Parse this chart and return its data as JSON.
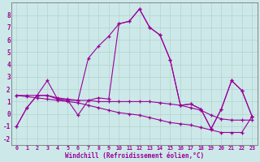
{
  "xlabel": "Windchill (Refroidissement éolien,°C)",
  "bg_color": "#cde8e8",
  "line_color": "#990099",
  "grid_color": "#b0d4cc",
  "xlim": [
    -0.5,
    23.5
  ],
  "ylim": [
    -2.5,
    9.0
  ],
  "xticks": [
    0,
    1,
    2,
    3,
    4,
    5,
    6,
    7,
    8,
    9,
    10,
    11,
    12,
    13,
    14,
    15,
    16,
    17,
    18,
    19,
    20,
    21,
    22,
    23
  ],
  "yticks": [
    -2,
    -1,
    0,
    1,
    2,
    3,
    4,
    5,
    6,
    7,
    8
  ],
  "lineA_x": [
    0,
    1,
    2,
    3,
    4,
    5,
    6,
    7,
    8,
    9,
    10,
    11,
    12,
    13,
    14,
    15,
    16,
    17,
    18,
    19,
    20,
    21,
    22,
    23
  ],
  "lineA_y": [
    -1.0,
    0.5,
    1.5,
    1.5,
    1.2,
    1.1,
    1.1,
    4.5,
    5.5,
    6.3,
    7.3,
    7.5,
    8.5,
    7.0,
    6.4,
    4.4,
    0.7,
    0.8,
    0.4,
    -1.2,
    0.4,
    2.7,
    1.9,
    -0.2
  ],
  "lineB_x": [
    0,
    1,
    2,
    3,
    4,
    5,
    6,
    7,
    8,
    9,
    10,
    11,
    12,
    13,
    14,
    15,
    16,
    17,
    18,
    19,
    20,
    21,
    22,
    23
  ],
  "lineB_y": [
    -1.0,
    0.5,
    1.5,
    2.7,
    1.2,
    1.1,
    -0.1,
    1.1,
    1.3,
    1.2,
    7.3,
    7.5,
    8.5,
    7.0,
    6.4,
    4.4,
    0.7,
    0.8,
    0.4,
    -1.2,
    0.4,
    2.7,
    1.9,
    -0.2
  ],
  "lineC_x": [
    0,
    1,
    2,
    3,
    4,
    5,
    6,
    7,
    8,
    9,
    10,
    11,
    12,
    13,
    14,
    15,
    16,
    17,
    18,
    19,
    20,
    21,
    22,
    23
  ],
  "lineC_y": [
    1.5,
    1.5,
    1.5,
    1.5,
    1.3,
    1.2,
    1.1,
    1.1,
    1.0,
    1.0,
    1.0,
    1.0,
    1.0,
    1.0,
    0.9,
    0.8,
    0.7,
    0.5,
    0.3,
    -0.1,
    -0.4,
    -0.5,
    -0.5,
    -0.5
  ],
  "lineD_x": [
    0,
    1,
    2,
    3,
    4,
    5,
    6,
    7,
    8,
    9,
    10,
    11,
    12,
    13,
    14,
    15,
    16,
    17,
    18,
    19,
    20,
    21,
    22,
    23
  ],
  "lineD_y": [
    1.5,
    1.4,
    1.3,
    1.2,
    1.1,
    1.0,
    0.9,
    0.7,
    0.5,
    0.3,
    0.1,
    0.0,
    -0.1,
    -0.3,
    -0.5,
    -0.7,
    -0.8,
    -0.9,
    -1.1,
    -1.3,
    -1.5,
    -1.5,
    -1.5,
    -0.2
  ]
}
